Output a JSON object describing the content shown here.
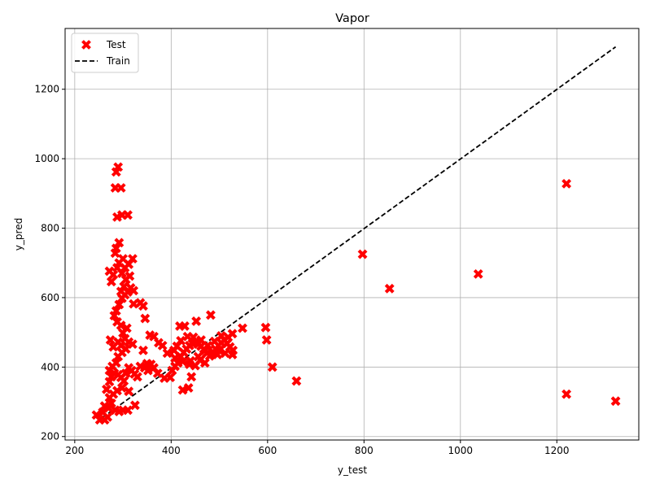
{
  "chart_data": {
    "type": "scatter",
    "title": "Vapor",
    "xlabel": "y_test",
    "ylabel": "y_pred",
    "xlim": [
      180,
      1370
    ],
    "ylim": [
      190,
      1375
    ],
    "xticks": [
      200,
      400,
      600,
      800,
      1000,
      1200
    ],
    "yticks": [
      200,
      400,
      600,
      800,
      1000,
      1200
    ],
    "grid": true,
    "legend_position": "upper-left",
    "colors": {
      "test": "#ff0000",
      "train": "#000000",
      "grid": "#b0b0b0"
    },
    "series": [
      {
        "name": "Test",
        "kind": "scatter",
        "marker": "x",
        "points": [
          [
            245,
            262
          ],
          [
            252,
            248
          ],
          [
            262,
            248
          ],
          [
            268,
            256
          ],
          [
            258,
            270
          ],
          [
            262,
            288
          ],
          [
            270,
            282
          ],
          [
            276,
            296
          ],
          [
            284,
            276
          ],
          [
            292,
            272
          ],
          [
            300,
            276
          ],
          [
            310,
            276
          ],
          [
            272,
            312
          ],
          [
            280,
            322
          ],
          [
            288,
            332
          ],
          [
            298,
            340
          ],
          [
            312,
            330
          ],
          [
            325,
            290
          ],
          [
            266,
            336
          ],
          [
            272,
            358
          ],
          [
            276,
            372
          ],
          [
            282,
            382
          ],
          [
            290,
            378
          ],
          [
            296,
            370
          ],
          [
            302,
            360
          ],
          [
            306,
            382
          ],
          [
            312,
            398
          ],
          [
            318,
            390
          ],
          [
            324,
            380
          ],
          [
            330,
            372
          ],
          [
            336,
            402
          ],
          [
            345,
            398
          ],
          [
            352,
            390
          ],
          [
            272,
            390
          ],
          [
            278,
            402
          ],
          [
            286,
            412
          ],
          [
            290,
            430
          ],
          [
            298,
            442
          ],
          [
            306,
            452
          ],
          [
            296,
            462
          ],
          [
            304,
            482
          ],
          [
            312,
            472
          ],
          [
            320,
            466
          ],
          [
            290,
            472
          ],
          [
            300,
            498
          ],
          [
            308,
            512
          ],
          [
            296,
            520
          ],
          [
            288,
            530
          ],
          [
            282,
            548
          ],
          [
            286,
            562
          ],
          [
            292,
            580
          ],
          [
            298,
            598
          ],
          [
            304,
            608
          ],
          [
            310,
            616
          ],
          [
            316,
            628
          ],
          [
            322,
            620
          ],
          [
            296,
            618
          ],
          [
            302,
            632
          ],
          [
            306,
            652
          ],
          [
            314,
            662
          ],
          [
            298,
            670
          ],
          [
            304,
            686
          ],
          [
            288,
            686
          ],
          [
            280,
            666
          ],
          [
            276,
            646
          ],
          [
            272,
            676
          ],
          [
            292,
            700
          ],
          [
            300,
            712
          ],
          [
            312,
            696
          ],
          [
            320,
            712
          ],
          [
            284,
            728
          ],
          [
            286,
            742
          ],
          [
            292,
            758
          ],
          [
            284,
            916
          ],
          [
            296,
            916
          ],
          [
            288,
            832
          ],
          [
            298,
            838
          ],
          [
            310,
            838
          ],
          [
            286,
            962
          ],
          [
            290,
            976
          ],
          [
            274,
            478
          ],
          [
            280,
            458
          ],
          [
            346,
            540
          ],
          [
            342,
            576
          ],
          [
            336,
            585
          ],
          [
            322,
            582
          ],
          [
            356,
            492
          ],
          [
            364,
            488
          ],
          [
            374,
            470
          ],
          [
            382,
            462
          ],
          [
            342,
            448
          ],
          [
            350,
            410
          ],
          [
            358,
            408
          ],
          [
            364,
            398
          ],
          [
            372,
            382
          ],
          [
            386,
            368
          ],
          [
            398,
            370
          ],
          [
            402,
            390
          ],
          [
            408,
            402
          ],
          [
            414,
            412
          ],
          [
            420,
            430
          ],
          [
            426,
            442
          ],
          [
            432,
            452
          ],
          [
            438,
            462
          ],
          [
            444,
            468
          ],
          [
            450,
            472
          ],
          [
            456,
            466
          ],
          [
            462,
            460
          ],
          [
            468,
            452
          ],
          [
            474,
            440
          ],
          [
            480,
            432
          ],
          [
            486,
            444
          ],
          [
            492,
            452
          ],
          [
            498,
            462
          ],
          [
            504,
            470
          ],
          [
            510,
            478
          ],
          [
            516,
            468
          ],
          [
            522,
            458
          ],
          [
            528,
            448
          ],
          [
            418,
            518
          ],
          [
            428,
            518
          ],
          [
            436,
            340
          ],
          [
            424,
            334
          ],
          [
            442,
            372
          ],
          [
            452,
            532
          ],
          [
            482,
            550
          ],
          [
            392,
            440
          ],
          [
            408,
            426
          ],
          [
            424,
            416
          ],
          [
            438,
            408
          ],
          [
            456,
            430
          ],
          [
            470,
            448
          ],
          [
            490,
            474
          ],
          [
            504,
            490
          ],
          [
            518,
            486
          ],
          [
            527,
            496
          ],
          [
            527,
            436
          ],
          [
            512,
            440
          ],
          [
            500,
            448
          ],
          [
            496,
            436
          ],
          [
            484,
            438
          ],
          [
            476,
            462
          ],
          [
            462,
            478
          ],
          [
            446,
            486
          ],
          [
            434,
            488
          ],
          [
            420,
            476
          ],
          [
            412,
            460
          ],
          [
            406,
            448
          ],
          [
            440,
            418
          ],
          [
            450,
            404
          ],
          [
            460,
            420
          ],
          [
            470,
            412
          ],
          [
            548,
            512
          ],
          [
            596,
            514
          ],
          [
            598,
            478
          ],
          [
            610,
            400
          ],
          [
            660,
            360
          ],
          [
            797,
            725
          ],
          [
            853,
            626
          ],
          [
            1037,
            668
          ],
          [
            1220,
            928
          ],
          [
            1220,
            322
          ],
          [
            1322,
            302
          ]
        ]
      },
      {
        "name": "Train",
        "kind": "line",
        "style": "dashed",
        "points": [
          [
            245,
            242
          ],
          [
            1322,
            1322
          ]
        ]
      }
    ]
  }
}
